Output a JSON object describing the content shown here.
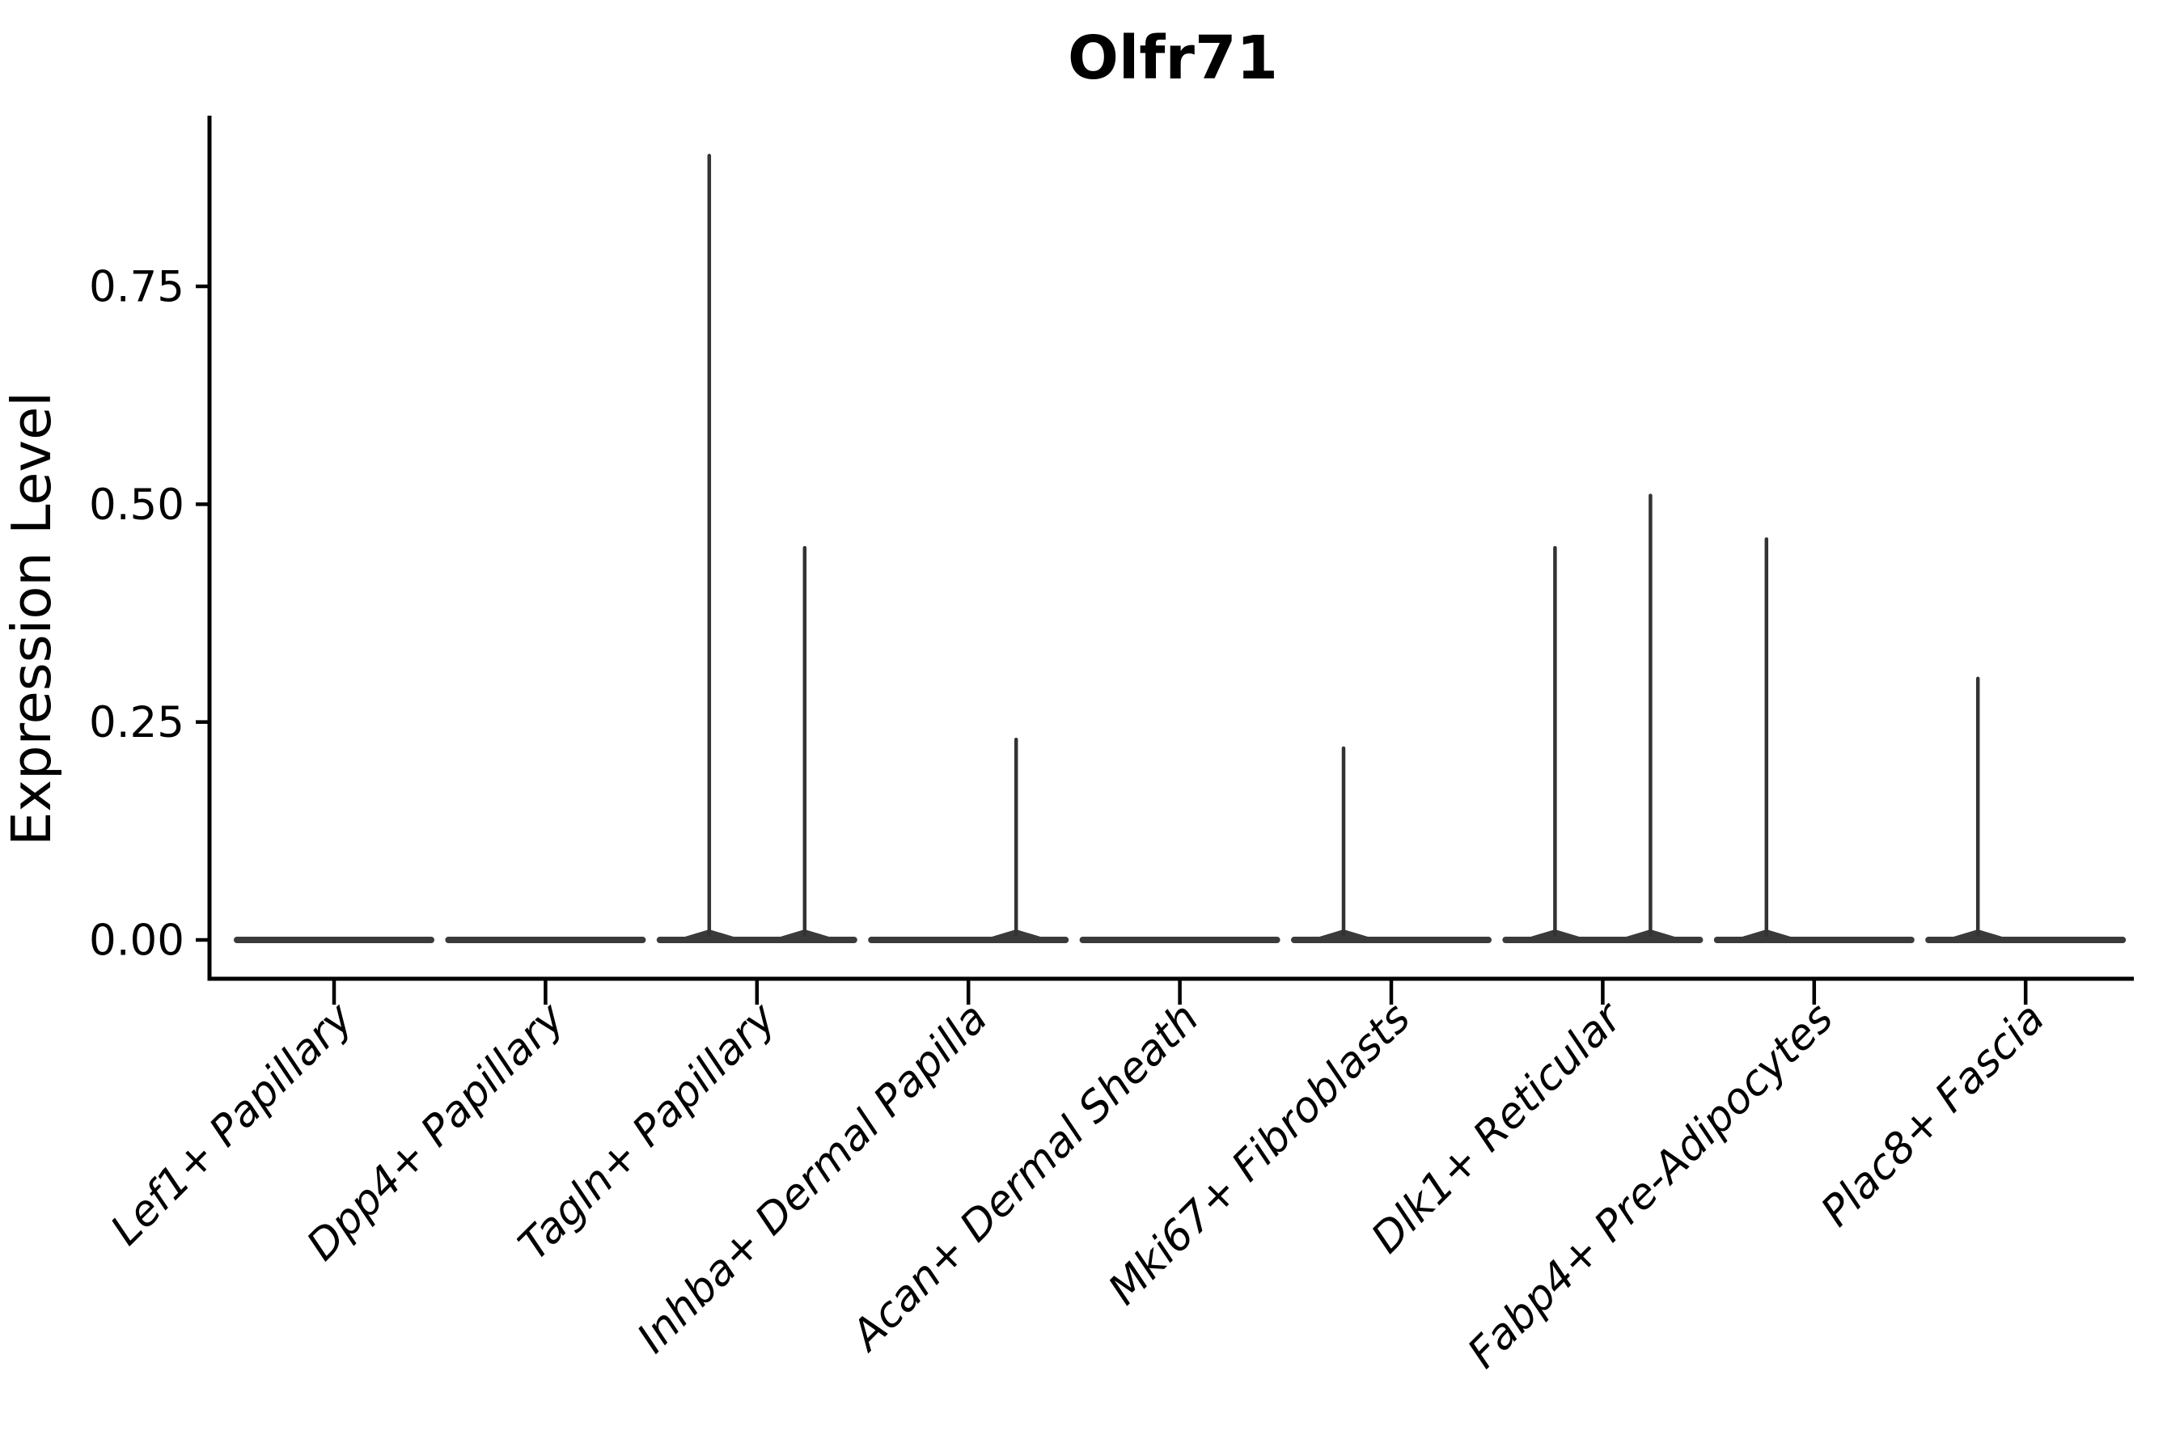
{
  "page": {
    "background": "#ffffff"
  },
  "chart_data": {
    "type": "violin",
    "title": "Olfr71",
    "xlabel": "",
    "ylabel": "Expression Level",
    "ytick_labels": [
      "0.00",
      "0.25",
      "0.50",
      "0.75"
    ],
    "ytick_values": [
      0,
      0.25,
      0.5,
      0.75
    ],
    "ylim": [
      -0.05,
      0.95
    ],
    "grid": false,
    "legend": false,
    "categories": [
      "Lef1+ Papillary",
      "Dpp4+ Papillary",
      "Tagln+ Papillary",
      "Inhba+ Dermal Papilla",
      "Acan+ Dermal Sheath",
      "Mki67+ Fibroblasts",
      "Dlk1+ Reticular",
      "Fabp4+ Pre-Adipocytes",
      "Plac8+ Fascia"
    ],
    "series": [
      {
        "name": "Lef1+ Papillary",
        "violin": "flat-at-zero",
        "spikes": []
      },
      {
        "name": "Dpp4+ Papillary",
        "violin": "flat-at-zero",
        "spikes": []
      },
      {
        "name": "Tagln+ Papillary",
        "violin": "flat-at-zero",
        "spikes": [
          {
            "side": "left",
            "max_expression": 0.9
          },
          {
            "side": "right",
            "max_expression": 0.45
          }
        ]
      },
      {
        "name": "Inhba+ Dermal Papilla",
        "violin": "flat-at-zero",
        "spikes": [
          {
            "side": "right",
            "max_expression": 0.23
          }
        ]
      },
      {
        "name": "Acan+ Dermal Sheath",
        "violin": "flat-at-zero",
        "spikes": []
      },
      {
        "name": "Mki67+ Fibroblasts",
        "violin": "flat-at-zero",
        "spikes": [
          {
            "side": "left",
            "max_expression": 0.22
          }
        ]
      },
      {
        "name": "Dlk1+ Reticular",
        "violin": "flat-at-zero",
        "spikes": [
          {
            "side": "left",
            "max_expression": 0.45
          },
          {
            "side": "right",
            "max_expression": 0.51
          }
        ]
      },
      {
        "name": "Fabp4+ Pre-Adipocytes",
        "violin": "flat-at-zero",
        "spikes": [
          {
            "side": "left",
            "max_expression": 0.46
          }
        ]
      },
      {
        "name": "Plac8+ Fascia",
        "violin": "flat-at-zero",
        "spikes": [
          {
            "side": "left",
            "max_expression": 0.3
          }
        ]
      }
    ],
    "colors": {
      "violin_stroke": "#3a3a3a",
      "axis": "#000000",
      "text": "#000000",
      "background": "#ffffff"
    }
  }
}
